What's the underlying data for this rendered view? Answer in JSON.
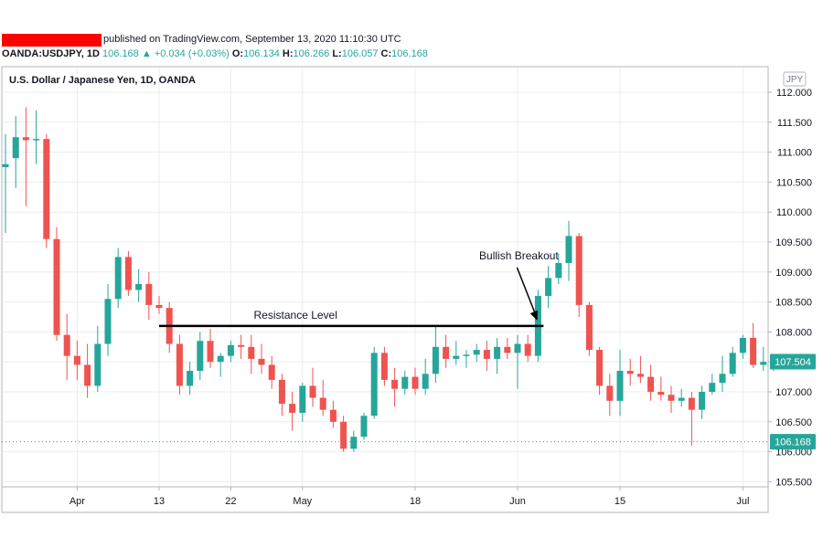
{
  "header": {
    "published": "published on TradingView.com, September 13, 2020 11:10:30 UTC",
    "symbol": "OANDA:USDJPY, 1D",
    "last": "106.168",
    "change": "+0.034 (+0.03%)",
    "o_label": "O:",
    "o_value": "106.134",
    "h_label": "H:",
    "h_value": "106.266",
    "l_label": "L:",
    "l_value": "106.057",
    "c_label": "C:",
    "c_value": "106.168"
  },
  "colors": {
    "up": "#26a69a",
    "down": "#ef5350",
    "grid": "#e9ecf2",
    "axis_text": "#131722",
    "price_line": "#26a69a",
    "annotation": "#000000"
  },
  "chart_data": {
    "type": "candlestick",
    "title": "U.S. Dollar / Japanese Yen, 1D, OANDA",
    "currency_label": "JPY",
    "ylim": [
      105.3,
      112.2
    ],
    "y_ticks": [
      "112.000",
      "111.500",
      "111.000",
      "110.500",
      "110.000",
      "109.500",
      "109.000",
      "108.500",
      "108.000",
      "107.500",
      "107.000",
      "106.500",
      "106.000",
      "105.500"
    ],
    "x_ticks": [
      {
        "label": "Apr",
        "index": 7
      },
      {
        "label": "13",
        "index": 15
      },
      {
        "label": "22",
        "index": 22
      },
      {
        "label": "May",
        "index": 29
      },
      {
        "label": "18",
        "index": 40
      },
      {
        "label": "Jun",
        "index": 50
      },
      {
        "label": "15",
        "index": 60
      },
      {
        "label": "Jul",
        "index": 72
      }
    ],
    "candles": [
      {
        "o": 110.75,
        "h": 111.3,
        "l": 109.65,
        "c": 110.8
      },
      {
        "o": 110.9,
        "h": 111.6,
        "l": 110.4,
        "c": 111.25
      },
      {
        "o": 111.25,
        "h": 111.75,
        "l": 110.1,
        "c": 111.2
      },
      {
        "o": 111.2,
        "h": 111.7,
        "l": 110.8,
        "c": 111.22
      },
      {
        "o": 111.22,
        "h": 111.3,
        "l": 109.4,
        "c": 109.55
      },
      {
        "o": 109.55,
        "h": 109.75,
        "l": 107.85,
        "c": 107.95
      },
      {
        "o": 107.95,
        "h": 108.3,
        "l": 107.2,
        "c": 107.6
      },
      {
        "o": 107.6,
        "h": 107.85,
        "l": 107.2,
        "c": 107.45
      },
      {
        "o": 107.45,
        "h": 107.8,
        "l": 106.9,
        "c": 107.1
      },
      {
        "o": 107.1,
        "h": 108.1,
        "l": 107.0,
        "c": 107.8
      },
      {
        "o": 107.8,
        "h": 108.8,
        "l": 107.6,
        "c": 108.55
      },
      {
        "o": 108.55,
        "h": 109.4,
        "l": 108.4,
        "c": 109.25
      },
      {
        "o": 109.25,
        "h": 109.35,
        "l": 108.6,
        "c": 108.7
      },
      {
        "o": 108.7,
        "h": 109.05,
        "l": 108.5,
        "c": 108.8
      },
      {
        "o": 108.8,
        "h": 109.0,
        "l": 108.2,
        "c": 108.45
      },
      {
        "o": 108.45,
        "h": 108.6,
        "l": 108.3,
        "c": 108.4
      },
      {
        "o": 108.4,
        "h": 108.5,
        "l": 107.65,
        "c": 107.8
      },
      {
        "o": 107.8,
        "h": 107.95,
        "l": 106.95,
        "c": 107.1
      },
      {
        "o": 107.1,
        "h": 107.5,
        "l": 106.95,
        "c": 107.35
      },
      {
        "o": 107.35,
        "h": 108.0,
        "l": 107.2,
        "c": 107.85
      },
      {
        "o": 107.85,
        "h": 108.05,
        "l": 107.4,
        "c": 107.5
      },
      {
        "o": 107.5,
        "h": 107.65,
        "l": 107.25,
        "c": 107.6
      },
      {
        "o": 107.6,
        "h": 107.85,
        "l": 107.5,
        "c": 107.78
      },
      {
        "o": 107.78,
        "h": 107.95,
        "l": 107.55,
        "c": 107.75
      },
      {
        "o": 107.75,
        "h": 107.95,
        "l": 107.3,
        "c": 107.55
      },
      {
        "o": 107.55,
        "h": 107.8,
        "l": 107.3,
        "c": 107.45
      },
      {
        "o": 107.45,
        "h": 107.6,
        "l": 107.05,
        "c": 107.2
      },
      {
        "o": 107.2,
        "h": 107.3,
        "l": 106.6,
        "c": 106.8
      },
      {
        "o": 106.8,
        "h": 107.0,
        "l": 106.35,
        "c": 106.65
      },
      {
        "o": 106.65,
        "h": 107.15,
        "l": 106.5,
        "c": 107.1
      },
      {
        "o": 107.1,
        "h": 107.4,
        "l": 106.75,
        "c": 106.9
      },
      {
        "o": 106.9,
        "h": 107.2,
        "l": 106.6,
        "c": 106.7
      },
      {
        "o": 106.7,
        "h": 106.85,
        "l": 106.4,
        "c": 106.5
      },
      {
        "o": 106.5,
        "h": 106.6,
        "l": 106.0,
        "c": 106.05
      },
      {
        "o": 106.05,
        "h": 106.35,
        "l": 106.0,
        "c": 106.25
      },
      {
        "o": 106.25,
        "h": 106.65,
        "l": 106.2,
        "c": 106.6
      },
      {
        "o": 106.6,
        "h": 107.75,
        "l": 106.55,
        "c": 107.65
      },
      {
        "o": 107.65,
        "h": 107.75,
        "l": 107.1,
        "c": 107.2
      },
      {
        "o": 107.2,
        "h": 107.4,
        "l": 106.75,
        "c": 107.05
      },
      {
        "o": 107.05,
        "h": 107.35,
        "l": 106.95,
        "c": 107.25
      },
      {
        "o": 107.25,
        "h": 107.4,
        "l": 106.95,
        "c": 107.05
      },
      {
        "o": 107.05,
        "h": 107.55,
        "l": 106.95,
        "c": 107.3
      },
      {
        "o": 107.3,
        "h": 108.1,
        "l": 107.15,
        "c": 107.75
      },
      {
        "o": 107.75,
        "h": 107.95,
        "l": 107.4,
        "c": 107.55
      },
      {
        "o": 107.55,
        "h": 107.85,
        "l": 107.45,
        "c": 107.6
      },
      {
        "o": 107.6,
        "h": 107.7,
        "l": 107.4,
        "c": 107.62
      },
      {
        "o": 107.62,
        "h": 107.8,
        "l": 107.5,
        "c": 107.7
      },
      {
        "o": 107.7,
        "h": 107.85,
        "l": 107.35,
        "c": 107.55
      },
      {
        "o": 107.55,
        "h": 107.9,
        "l": 107.3,
        "c": 107.75
      },
      {
        "o": 107.75,
        "h": 107.9,
        "l": 107.55,
        "c": 107.65
      },
      {
        "o": 107.65,
        "h": 107.95,
        "l": 107.05,
        "c": 107.8
      },
      {
        "o": 107.8,
        "h": 107.95,
        "l": 107.5,
        "c": 107.6
      },
      {
        "o": 107.6,
        "h": 108.7,
        "l": 107.5,
        "c": 108.6
      },
      {
        "o": 108.6,
        "h": 109.1,
        "l": 108.4,
        "c": 108.9
      },
      {
        "o": 108.9,
        "h": 109.3,
        "l": 108.8,
        "c": 109.15
      },
      {
        "o": 109.15,
        "h": 109.85,
        "l": 108.85,
        "c": 109.6
      },
      {
        "o": 109.6,
        "h": 109.65,
        "l": 108.25,
        "c": 108.45
      },
      {
        "o": 108.45,
        "h": 108.5,
        "l": 107.6,
        "c": 107.7
      },
      {
        "o": 107.7,
        "h": 107.75,
        "l": 106.95,
        "c": 107.1
      },
      {
        "o": 107.1,
        "h": 107.3,
        "l": 106.6,
        "c": 106.85
      },
      {
        "o": 106.85,
        "h": 107.7,
        "l": 106.6,
        "c": 107.35
      },
      {
        "o": 107.35,
        "h": 107.55,
        "l": 107.1,
        "c": 107.3
      },
      {
        "o": 107.3,
        "h": 107.6,
        "l": 107.15,
        "c": 107.25
      },
      {
        "o": 107.25,
        "h": 107.45,
        "l": 106.85,
        "c": 107.0
      },
      {
        "o": 107.0,
        "h": 107.25,
        "l": 106.85,
        "c": 106.95
      },
      {
        "o": 106.95,
        "h": 107.1,
        "l": 106.65,
        "c": 106.85
      },
      {
        "o": 106.85,
        "h": 107.05,
        "l": 106.75,
        "c": 106.9
      },
      {
        "o": 106.9,
        "h": 107.0,
        "l": 106.1,
        "c": 106.7
      },
      {
        "o": 106.7,
        "h": 107.1,
        "l": 106.55,
        "c": 107.0
      },
      {
        "o": 107.0,
        "h": 107.3,
        "l": 106.95,
        "c": 107.15
      },
      {
        "o": 107.15,
        "h": 107.6,
        "l": 107.0,
        "c": 107.3
      },
      {
        "o": 107.3,
        "h": 107.75,
        "l": 107.25,
        "c": 107.65
      },
      {
        "o": 107.65,
        "h": 107.95,
        "l": 107.55,
        "c": 107.9
      },
      {
        "o": 107.9,
        "h": 108.15,
        "l": 107.4,
        "c": 107.45
      },
      {
        "o": 107.45,
        "h": 107.75,
        "l": 107.35,
        "c": 107.5
      },
      {
        "o": 107.5,
        "h": 107.55,
        "l": 107.35,
        "c": 107.504
      }
    ],
    "resistance": {
      "label": "Resistance Level",
      "price": 108.1,
      "from_index": 15,
      "to_index": 52
    },
    "breakout": {
      "label": "Bullish Breakout",
      "target_index": 52,
      "target_price": 108.1
    },
    "last_price_label": "107.504",
    "price_line_label": "106.168",
    "price_line_value": 106.168
  }
}
